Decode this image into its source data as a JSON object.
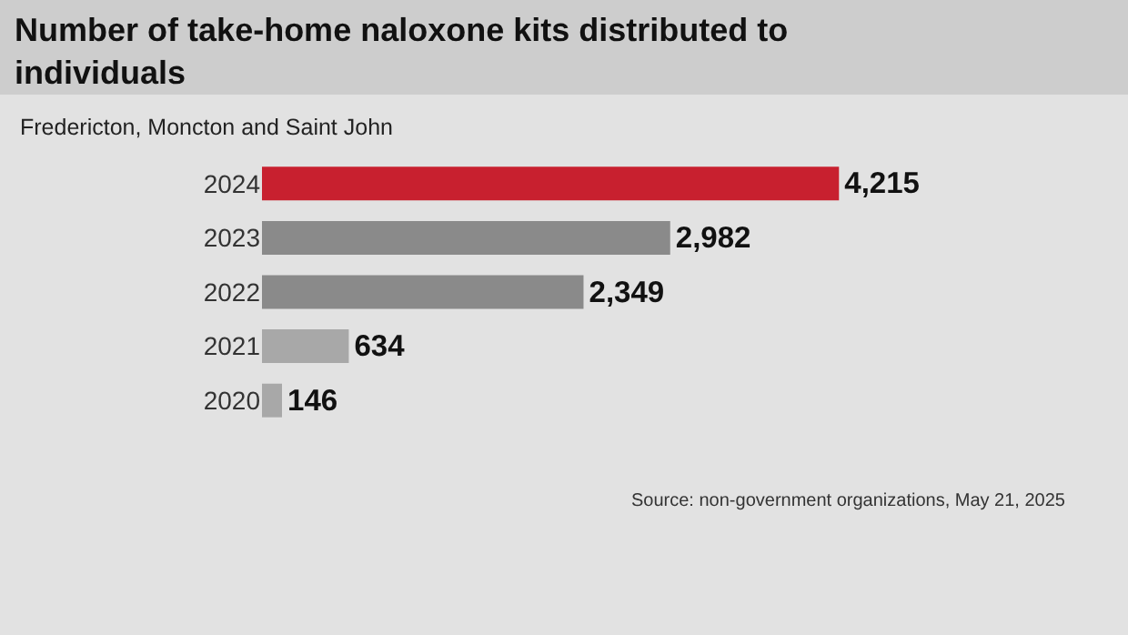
{
  "chart_data": {
    "type": "bar",
    "orientation": "horizontal",
    "title": "Number of take-home naloxone kits distributed to individuals",
    "subtitle": "Fredericton, Moncton and Saint John",
    "categories": [
      "2024",
      "2023",
      "2022",
      "2021",
      "2020"
    ],
    "values": [
      4215,
      2982,
      2349,
      634,
      146
    ],
    "colors": [
      "#c8202f",
      "#8a8a8a",
      "#8a8a8a",
      "#a8a8a8",
      "#a8a8a8"
    ],
    "value_labels": [
      "4,215",
      "2,982",
      "2,349",
      "634",
      "146"
    ],
    "annotations": [
      "Source: non-government organizations, May 21, 2025"
    ],
    "grid": false,
    "legend": false
  }
}
